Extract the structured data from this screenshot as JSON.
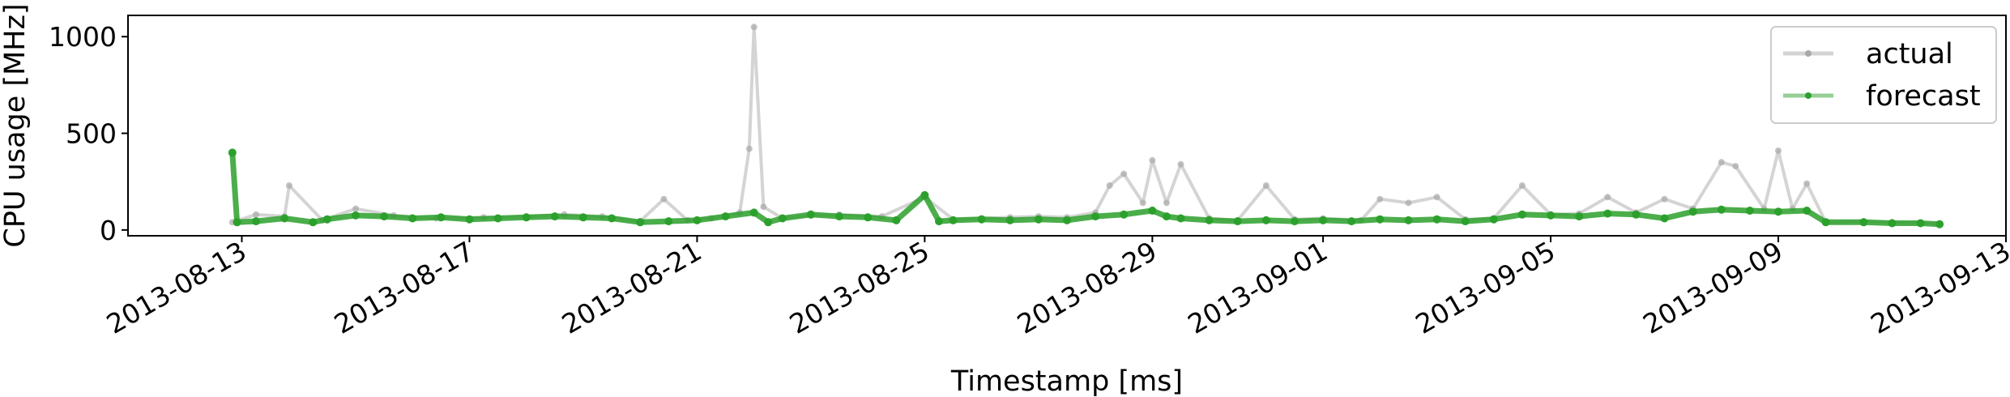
{
  "chart_data": {
    "type": "line",
    "xlabel": "Timestamp [ms]",
    "ylabel": "CPU usage [MHz]",
    "x_axis": {
      "type": "date",
      "range": [
        "2013-08-11T00:00",
        "2013-09-13T00:00"
      ],
      "ticks": [
        "2013-08-13",
        "2013-08-17",
        "2013-08-21",
        "2013-08-25",
        "2013-08-29",
        "2013-09-01",
        "2013-09-05",
        "2013-09-09",
        "2013-09-13"
      ]
    },
    "y_axis": {
      "range": [
        -30,
        1110
      ],
      "ticks": [
        0,
        500,
        1000
      ]
    },
    "grid": false,
    "legend": {
      "position": "top-right",
      "entries": [
        {
          "name": "actual",
          "color": "#a9a9a9"
        },
        {
          "name": "forecast",
          "color": "#2ca02c"
        }
      ]
    },
    "series": [
      {
        "name": "actual",
        "color": "#a9a9a9",
        "points": [
          [
            "2013-08-12T20:00",
            40
          ],
          [
            "2013-08-13T06:00",
            80
          ],
          [
            "2013-08-13T18:00",
            70
          ],
          [
            "2013-08-13T20:00",
            230
          ],
          [
            "2013-08-14T10:00",
            50
          ],
          [
            "2013-08-15T00:00",
            110
          ],
          [
            "2013-08-15T16:00",
            75
          ],
          [
            "2013-08-16T10:00",
            60
          ],
          [
            "2013-08-17T06:00",
            65
          ],
          [
            "2013-08-18T00:00",
            70
          ],
          [
            "2013-08-18T16:00",
            80
          ],
          [
            "2013-08-19T08:00",
            70
          ],
          [
            "2013-08-20T00:00",
            45
          ],
          [
            "2013-08-20T10:00",
            160
          ],
          [
            "2013-08-20T20:00",
            50
          ],
          [
            "2013-08-21T06:00",
            60
          ],
          [
            "2013-08-21T18:00",
            90
          ],
          [
            "2013-08-21T22:00",
            420
          ],
          [
            "2013-08-22T00:00",
            1050
          ],
          [
            "2013-08-22T04:00",
            120
          ],
          [
            "2013-08-22T12:00",
            60
          ],
          [
            "2013-08-23T00:00",
            75
          ],
          [
            "2013-08-23T12:00",
            80
          ],
          [
            "2013-08-24T06:00",
            70
          ],
          [
            "2013-08-25T00:00",
            170
          ],
          [
            "2013-08-25T12:00",
            55
          ],
          [
            "2013-08-26T00:00",
            60
          ],
          [
            "2013-08-26T12:00",
            65
          ],
          [
            "2013-08-27T00:00",
            70
          ],
          [
            "2013-08-27T12:00",
            65
          ],
          [
            "2013-08-28T00:00",
            90
          ],
          [
            "2013-08-28T06:00",
            230
          ],
          [
            "2013-08-28T12:00",
            290
          ],
          [
            "2013-08-28T20:00",
            140
          ],
          [
            "2013-08-29T00:00",
            360
          ],
          [
            "2013-08-29T06:00",
            140
          ],
          [
            "2013-08-29T12:00",
            340
          ],
          [
            "2013-08-30T00:00",
            60
          ],
          [
            "2013-08-30T12:00",
            50
          ],
          [
            "2013-08-31T00:00",
            230
          ],
          [
            "2013-08-31T12:00",
            55
          ],
          [
            "2013-09-01T00:00",
            60
          ],
          [
            "2013-09-01T16:00",
            50
          ],
          [
            "2013-09-02T00:00",
            160
          ],
          [
            "2013-09-02T12:00",
            140
          ],
          [
            "2013-09-03T00:00",
            170
          ],
          [
            "2013-09-03T12:00",
            55
          ],
          [
            "2013-09-04T00:00",
            60
          ],
          [
            "2013-09-04T12:00",
            230
          ],
          [
            "2013-09-05T00:00",
            80
          ],
          [
            "2013-09-05T12:00",
            85
          ],
          [
            "2013-09-06T00:00",
            170
          ],
          [
            "2013-09-06T12:00",
            90
          ],
          [
            "2013-09-07T00:00",
            160
          ],
          [
            "2013-09-07T12:00",
            110
          ],
          [
            "2013-09-08T00:00",
            350
          ],
          [
            "2013-09-08T06:00",
            330
          ],
          [
            "2013-09-08T18:00",
            110
          ],
          [
            "2013-09-09T00:00",
            410
          ],
          [
            "2013-09-09T06:00",
            110
          ],
          [
            "2013-09-09T12:00",
            240
          ],
          [
            "2013-09-09T20:00",
            40
          ],
          [
            "2013-09-10T12:00",
            45
          ],
          [
            "2013-09-11T00:00",
            40
          ],
          [
            "2013-09-11T12:00",
            35
          ],
          [
            "2013-09-11T20:00",
            30
          ]
        ]
      },
      {
        "name": "forecast",
        "color": "#2ca02c",
        "points": [
          [
            "2013-08-12T20:00",
            400
          ],
          [
            "2013-08-12T22:00",
            40
          ],
          [
            "2013-08-13T06:00",
            45
          ],
          [
            "2013-08-13T18:00",
            60
          ],
          [
            "2013-08-14T06:00",
            40
          ],
          [
            "2013-08-14T12:00",
            55
          ],
          [
            "2013-08-15T00:00",
            75
          ],
          [
            "2013-08-15T12:00",
            70
          ],
          [
            "2013-08-16T00:00",
            60
          ],
          [
            "2013-08-16T12:00",
            65
          ],
          [
            "2013-08-17T00:00",
            55
          ],
          [
            "2013-08-17T12:00",
            60
          ],
          [
            "2013-08-18T00:00",
            65
          ],
          [
            "2013-08-18T12:00",
            70
          ],
          [
            "2013-08-19T00:00",
            65
          ],
          [
            "2013-08-19T12:00",
            60
          ],
          [
            "2013-08-20T00:00",
            40
          ],
          [
            "2013-08-20T12:00",
            45
          ],
          [
            "2013-08-21T00:00",
            50
          ],
          [
            "2013-08-21T12:00",
            70
          ],
          [
            "2013-08-22T00:00",
            90
          ],
          [
            "2013-08-22T06:00",
            40
          ],
          [
            "2013-08-22T12:00",
            60
          ],
          [
            "2013-08-23T00:00",
            80
          ],
          [
            "2013-08-23T12:00",
            70
          ],
          [
            "2013-08-24T00:00",
            65
          ],
          [
            "2013-08-24T12:00",
            50
          ],
          [
            "2013-08-25T00:00",
            180
          ],
          [
            "2013-08-25T06:00",
            45
          ],
          [
            "2013-08-25T12:00",
            50
          ],
          [
            "2013-08-26T00:00",
            55
          ],
          [
            "2013-08-26T12:00",
            50
          ],
          [
            "2013-08-27T00:00",
            55
          ],
          [
            "2013-08-27T12:00",
            50
          ],
          [
            "2013-08-28T00:00",
            70
          ],
          [
            "2013-08-28T12:00",
            80
          ],
          [
            "2013-08-29T00:00",
            100
          ],
          [
            "2013-08-29T06:00",
            70
          ],
          [
            "2013-08-29T12:00",
            60
          ],
          [
            "2013-08-30T00:00",
            50
          ],
          [
            "2013-08-30T12:00",
            45
          ],
          [
            "2013-08-31T00:00",
            50
          ],
          [
            "2013-08-31T12:00",
            45
          ],
          [
            "2013-09-01T00:00",
            50
          ],
          [
            "2013-09-01T12:00",
            45
          ],
          [
            "2013-09-02T00:00",
            55
          ],
          [
            "2013-09-02T12:00",
            50
          ],
          [
            "2013-09-03T00:00",
            55
          ],
          [
            "2013-09-03T12:00",
            45
          ],
          [
            "2013-09-04T00:00",
            55
          ],
          [
            "2013-09-04T12:00",
            80
          ],
          [
            "2013-09-05T00:00",
            75
          ],
          [
            "2013-09-05T12:00",
            70
          ],
          [
            "2013-09-06T00:00",
            85
          ],
          [
            "2013-09-06T12:00",
            80
          ],
          [
            "2013-09-07T00:00",
            60
          ],
          [
            "2013-09-07T12:00",
            95
          ],
          [
            "2013-09-08T00:00",
            105
          ],
          [
            "2013-09-08T12:00",
            100
          ],
          [
            "2013-09-09T00:00",
            95
          ],
          [
            "2013-09-09T12:00",
            100
          ],
          [
            "2013-09-09T20:00",
            40
          ],
          [
            "2013-09-10T12:00",
            40
          ],
          [
            "2013-09-11T00:00",
            35
          ],
          [
            "2013-09-11T12:00",
            35
          ],
          [
            "2013-09-11T20:00",
            30
          ]
        ]
      }
    ]
  }
}
